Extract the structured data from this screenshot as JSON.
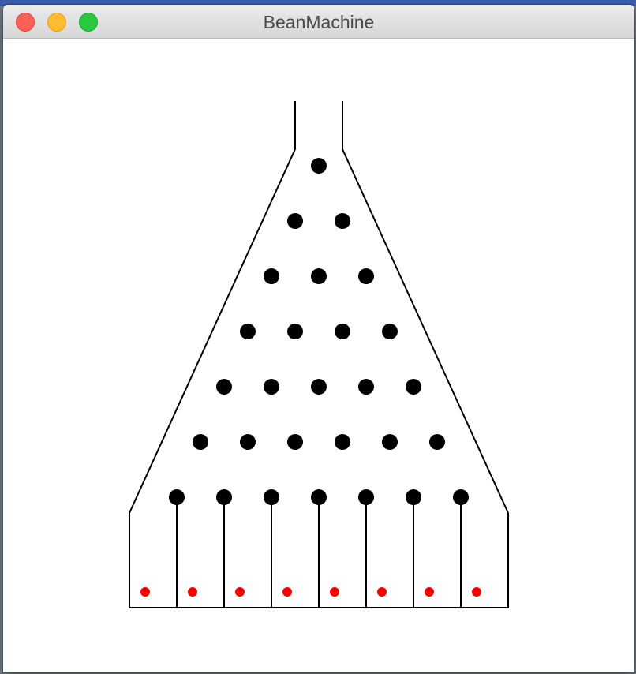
{
  "window": {
    "title": "BeanMachine",
    "buttons": [
      {
        "id": "close",
        "color": "#fe5f57",
        "border": "#e0443e"
      },
      {
        "id": "minimize",
        "color": "#febc2e",
        "border": "#dea123"
      },
      {
        "id": "zoom",
        "color": "#28c840",
        "border": "#1aab29"
      }
    ]
  },
  "board": {
    "peg_rows": 7,
    "slot_count": 8,
    "ball_count": 8,
    "colors": {
      "frame": "#000000",
      "peg": "#000000",
      "ball": "#ff0000",
      "background": "#ffffff"
    }
  }
}
